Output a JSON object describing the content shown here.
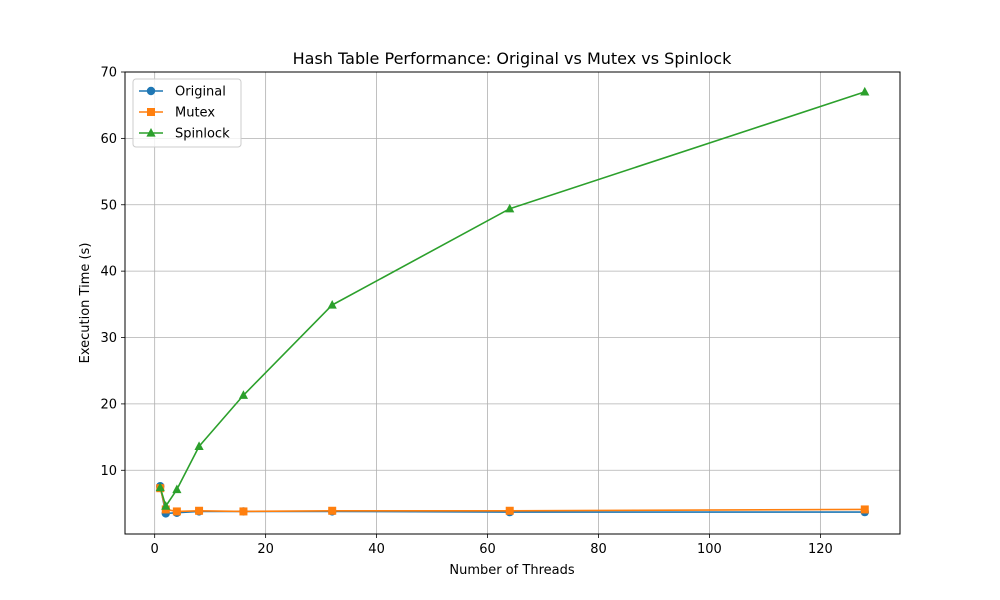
{
  "chart_data": {
    "type": "line",
    "title": "Hash Table Performance: Original vs Mutex vs Spinlock",
    "xlabel": "Number of Threads",
    "ylabel": "Execution Time (s)",
    "x": [
      1,
      2,
      4,
      8,
      16,
      32,
      64,
      128
    ],
    "xlim": [
      -5.35,
      134.35
    ],
    "ylim": [
      0.4,
      70
    ],
    "xticks": [
      0,
      20,
      40,
      60,
      80,
      100,
      120
    ],
    "yticks": [
      10,
      20,
      30,
      40,
      50,
      60,
      70
    ],
    "grid": true,
    "legend_position": "upper-left",
    "series": [
      {
        "name": "Original",
        "color": "#1f77b4",
        "marker": "circle",
        "values": [
          7.6,
          3.5,
          3.6,
          3.8,
          3.8,
          3.8,
          3.7,
          3.7
        ]
      },
      {
        "name": "Mutex",
        "color": "#ff7f0e",
        "marker": "square",
        "values": [
          7.3,
          4.1,
          3.8,
          3.9,
          3.8,
          3.9,
          3.9,
          4.1
        ]
      },
      {
        "name": "Spinlock",
        "color": "#2ca02c",
        "marker": "triangle",
        "values": [
          7.4,
          4.6,
          7.1,
          13.6,
          21.3,
          34.9,
          49.4,
          67.0
        ]
      }
    ]
  }
}
